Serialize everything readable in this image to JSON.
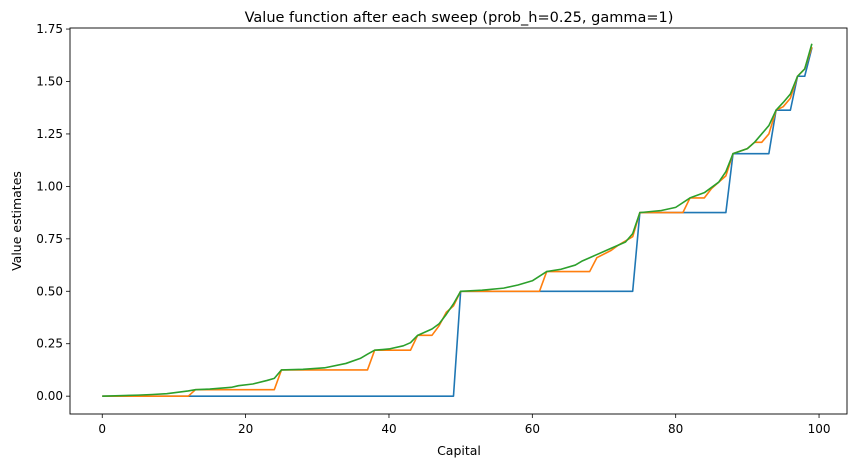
{
  "chart_data": {
    "type": "line",
    "title": "Value function after each sweep (prob_h=0.25, gamma=1)",
    "xlabel": "Capital",
    "ylabel": "Value estimates",
    "xlim": [
      -4.5,
      103.9
    ],
    "ylim": [
      -0.085,
      1.755
    ],
    "xticks": [
      0,
      20,
      40,
      60,
      80,
      100
    ],
    "yticks": [
      0.0,
      0.25,
      0.5,
      0.75,
      1.0,
      1.25,
      1.5,
      1.75
    ],
    "ytick_labels": [
      "0.00",
      "0.25",
      "0.50",
      "0.75",
      "1.00",
      "1.25",
      "1.50",
      "1.75"
    ],
    "grid": false,
    "series": [
      {
        "color": "#1f77b4",
        "points": [
          [
            0,
            0
          ],
          [
            49,
            0
          ],
          [
            50,
            0.5
          ],
          [
            74,
            0.5
          ],
          [
            75,
            0.875
          ],
          [
            87,
            0.875
          ],
          [
            88,
            1.156
          ],
          [
            93,
            1.156
          ],
          [
            94,
            1.363
          ],
          [
            96,
            1.363
          ],
          [
            97,
            1.525
          ],
          [
            98,
            1.525
          ],
          [
            99,
            1.66
          ]
        ]
      },
      {
        "color": "#ff7f0e",
        "points": [
          [
            0,
            0
          ],
          [
            12,
            0
          ],
          [
            13,
            0.031
          ],
          [
            24,
            0.031
          ],
          [
            25,
            0.125
          ],
          [
            37,
            0.125
          ],
          [
            38,
            0.219
          ],
          [
            43,
            0.219
          ],
          [
            44,
            0.29
          ],
          [
            46,
            0.29
          ],
          [
            47,
            0.336
          ],
          [
            48,
            0.4
          ],
          [
            49,
            0.43
          ],
          [
            50,
            0.5
          ],
          [
            61,
            0.5
          ],
          [
            62,
            0.594
          ],
          [
            68,
            0.594
          ],
          [
            69,
            0.66
          ],
          [
            71,
            0.695
          ],
          [
            72,
            0.72
          ],
          [
            74,
            0.76
          ],
          [
            75,
            0.875
          ],
          [
            81,
            0.875
          ],
          [
            82,
            0.945
          ],
          [
            84,
            0.945
          ],
          [
            85,
            0.99
          ],
          [
            87,
            1.05
          ],
          [
            88,
            1.156
          ],
          [
            90,
            1.18
          ],
          [
            91,
            1.21
          ],
          [
            92,
            1.21
          ],
          [
            93,
            1.25
          ],
          [
            94,
            1.363
          ],
          [
            95,
            1.38
          ],
          [
            96,
            1.42
          ],
          [
            97,
            1.525
          ],
          [
            98,
            1.56
          ],
          [
            99,
            1.665
          ]
        ]
      },
      {
        "color": "#2ca02c",
        "points": [
          [
            0,
            0
          ],
          [
            3,
            0.003
          ],
          [
            5,
            0.005
          ],
          [
            7,
            0.008
          ],
          [
            9,
            0.012
          ],
          [
            12,
            0.025
          ],
          [
            13,
            0.031
          ],
          [
            15,
            0.034
          ],
          [
            18,
            0.042
          ],
          [
            19,
            0.05
          ],
          [
            21,
            0.058
          ],
          [
            23,
            0.075
          ],
          [
            24,
            0.085
          ],
          [
            25,
            0.125
          ],
          [
            28,
            0.128
          ],
          [
            31,
            0.135
          ],
          [
            34,
            0.156
          ],
          [
            36,
            0.18
          ],
          [
            37,
            0.2
          ],
          [
            38,
            0.219
          ],
          [
            40,
            0.225
          ],
          [
            42,
            0.24
          ],
          [
            43,
            0.255
          ],
          [
            44,
            0.29
          ],
          [
            46,
            0.32
          ],
          [
            47,
            0.345
          ],
          [
            48,
            0.39
          ],
          [
            49,
            0.44
          ],
          [
            50,
            0.5
          ],
          [
            53,
            0.505
          ],
          [
            56,
            0.515
          ],
          [
            58,
            0.53
          ],
          [
            60,
            0.55
          ],
          [
            62,
            0.594
          ],
          [
            64,
            0.605
          ],
          [
            66,
            0.625
          ],
          [
            67,
            0.645
          ],
          [
            68,
            0.66
          ],
          [
            69,
            0.675
          ],
          [
            71,
            0.705
          ],
          [
            73,
            0.735
          ],
          [
            74,
            0.775
          ],
          [
            75,
            0.875
          ],
          [
            78,
            0.885
          ],
          [
            80,
            0.9
          ],
          [
            82,
            0.945
          ],
          [
            84,
            0.97
          ],
          [
            86,
            1.02
          ],
          [
            87,
            1.07
          ],
          [
            88,
            1.156
          ],
          [
            90,
            1.18
          ],
          [
            91,
            1.21
          ],
          [
            92,
            1.25
          ],
          [
            93,
            1.29
          ],
          [
            94,
            1.363
          ],
          [
            95,
            1.4
          ],
          [
            96,
            1.44
          ],
          [
            97,
            1.525
          ],
          [
            98,
            1.56
          ],
          [
            99,
            1.68
          ]
        ]
      }
    ]
  }
}
